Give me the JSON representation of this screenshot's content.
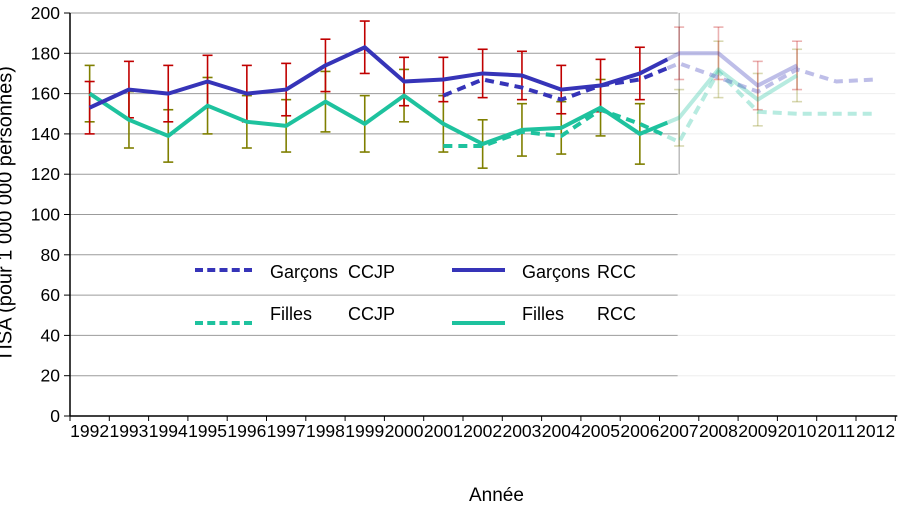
{
  "chart_data": {
    "type": "line",
    "title": "",
    "xlabel": "Année",
    "ylabel": "TISA (pour 1 000 000 personnes)",
    "x": [
      "1992",
      "1993",
      "1994",
      "1995",
      "1996",
      "1997",
      "1998",
      "1999",
      "2000",
      "2001",
      "2002",
      "2003",
      "2004",
      "2005",
      "2006",
      "2007",
      "2008",
      "2009",
      "2010",
      "2011",
      "2012"
    ],
    "ylim": [
      0,
      200
    ],
    "ytick_step": 20,
    "yticks": [
      "0",
      "20",
      "40",
      "60",
      "80",
      "100",
      "120",
      "140",
      "160",
      "180",
      "200"
    ],
    "grid": true,
    "legend_position": "inside-left-middle",
    "fade_from_year": "2007",
    "note_visual": "data from 2007 onward drawn faded (provisional region); gridlines also faded right of 2007 divider",
    "colors": {
      "boys": "#3634B8",
      "girls": "#1EC29E",
      "boys_error_bar": "#C00000",
      "girls_error_bar": "#7F7F00",
      "grid": "#9B9B9B",
      "axis": "#000000"
    },
    "series": [
      {
        "name": "Filles RCC",
        "group": "girls",
        "style": "solid",
        "color": "#1EC29E",
        "values": [
          160,
          147,
          139,
          154,
          146,
          144,
          156,
          145,
          159,
          145,
          135,
          142,
          143,
          153,
          140,
          148,
          172,
          157,
          169,
          null,
          null
        ],
        "err": [
          14,
          14,
          13,
          14,
          13,
          13,
          15,
          14,
          13,
          14,
          12,
          13,
          13,
          14,
          15,
          14,
          14,
          13,
          13,
          null,
          null
        ],
        "err_color": "#7F7F00"
      },
      {
        "name": "Garçons RCC",
        "group": "boys",
        "style": "solid",
        "color": "#3634B8",
        "values": [
          153,
          162,
          160,
          166,
          160,
          162,
          174,
          183,
          166,
          167,
          170,
          169,
          162,
          164,
          170,
          180,
          180,
          164,
          174,
          null,
          null
        ],
        "err": [
          13,
          14,
          14,
          13,
          14,
          13,
          13,
          13,
          12,
          11,
          12,
          12,
          12,
          13,
          13,
          13,
          13,
          12,
          12,
          null,
          null
        ],
        "err_color": "#C00000"
      },
      {
        "name": "Filles CCJP",
        "group": "girls",
        "style": "dashed",
        "color": "#1EC29E",
        "values": [
          null,
          null,
          null,
          null,
          null,
          null,
          null,
          null,
          null,
          134,
          134,
          141,
          139,
          152,
          145,
          136,
          171,
          151,
          150,
          150,
          150
        ],
        "err": null,
        "err_color": null
      },
      {
        "name": "Garçons CCJP",
        "group": "boys",
        "style": "dashed",
        "color": "#3634B8",
        "values": [
          null,
          null,
          null,
          null,
          null,
          null,
          null,
          null,
          null,
          159,
          167,
          163,
          157,
          164,
          167,
          175,
          168,
          161,
          172,
          166,
          167
        ],
        "err": null,
        "err_color": null
      }
    ],
    "legend": {
      "rows": [
        [
          {
            "name": "Garçons",
            "code": "CCJP",
            "style": "dashed",
            "color": "#3634B8"
          },
          {
            "name": "Garçons",
            "code": "RCC",
            "style": "solid",
            "color": "#3634B8"
          }
        ],
        [
          {
            "name": "Filles",
            "code": "CCJP",
            "style": "dashed",
            "color": "#1EC29E"
          },
          {
            "name": "Filles",
            "code": "RCC",
            "style": "solid",
            "color": "#1EC29E"
          }
        ]
      ]
    }
  }
}
